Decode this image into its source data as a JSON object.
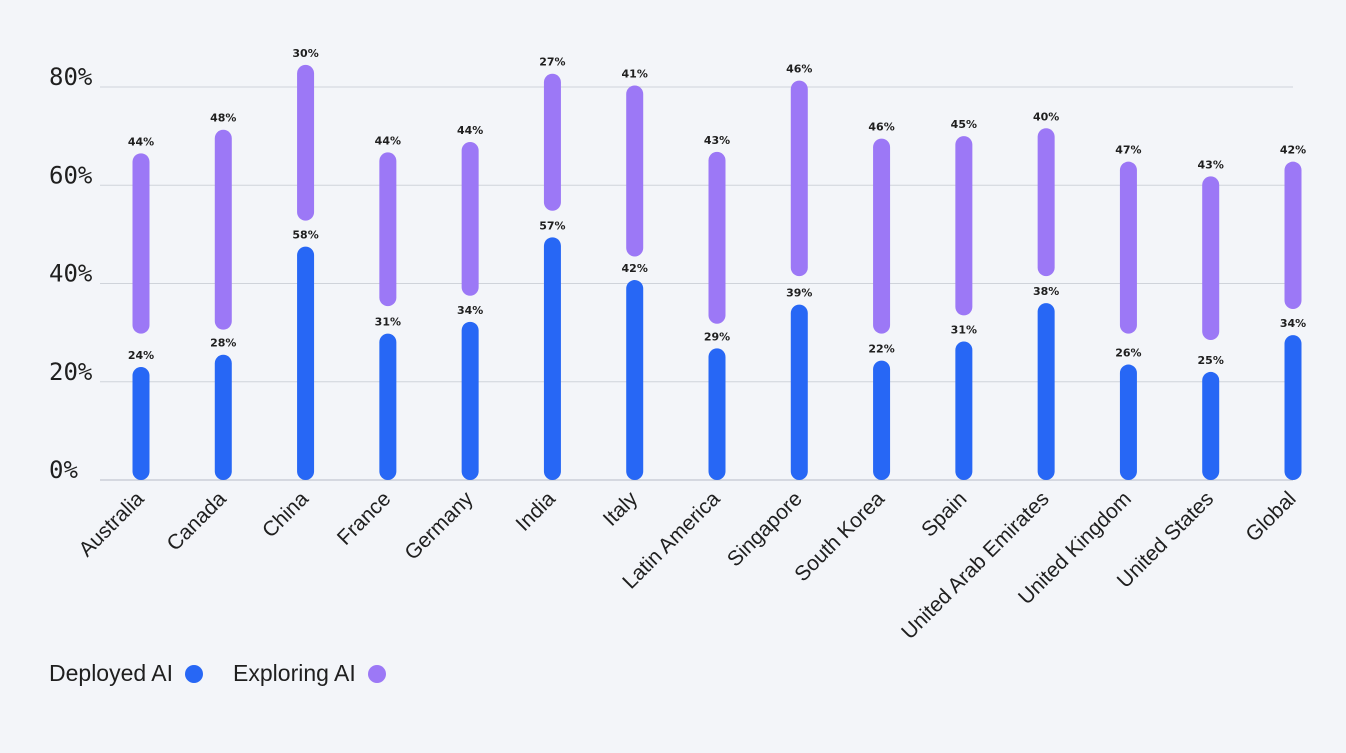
{
  "chart_data": {
    "type": "range-bar",
    "title": "",
    "xlabel": "",
    "ylabel": "",
    "ylim": [
      0,
      80
    ],
    "yticks": [
      "0%",
      "20%",
      "40%",
      "60%",
      "80%"
    ],
    "grid": true,
    "legend_position": "bottom-left",
    "categories": [
      "Australia",
      "Canada",
      "China",
      "France",
      "Germany",
      "India",
      "Italy",
      "Latin America",
      "Singapore",
      "South Korea",
      "Spain",
      "United Arab Emirates",
      "United Kingdom",
      "United States",
      "Global"
    ],
    "series": [
      {
        "name": "Deployed AI",
        "color": "#2767f5",
        "values": [
          24,
          28,
          58,
          31,
          34,
          57,
          42,
          29,
          39,
          22,
          31,
          38,
          26,
          25,
          34
        ],
        "labels": [
          "24%",
          "28%",
          "58%",
          "31%",
          "34%",
          "57%",
          "42%",
          "29%",
          "39%",
          "22%",
          "31%",
          "38%",
          "26%",
          "25%",
          "34%"
        ]
      },
      {
        "name": "Exploring AI",
        "color": "#9c78f6",
        "values": [
          44,
          48,
          30,
          44,
          44,
          27,
          41,
          43,
          46,
          46,
          45,
          40,
          47,
          43,
          42
        ],
        "labels": [
          "44%",
          "48%",
          "30%",
          "44%",
          "44%",
          "27%",
          "41%",
          "43%",
          "46%",
          "46%",
          "45%",
          "40%",
          "47%",
          "43%",
          "42%"
        ]
      }
    ],
    "visual_bars": {
      "deployed_top": [
        23,
        25.5,
        47.5,
        29.8,
        32.2,
        49.4,
        40.7,
        26.8,
        35.7,
        24.3,
        28.2,
        36,
        23.5,
        22,
        29.5
      ],
      "exploring_bottom": [
        29.8,
        30.6,
        52.8,
        35.4,
        37.5,
        54.8,
        45.5,
        31.8,
        41.5,
        29.8,
        33.5,
        41.5,
        29.8,
        28.5,
        34.8
      ],
      "exploring_top": [
        66.5,
        71.3,
        84.5,
        66.7,
        68.8,
        82.7,
        80.3,
        66.8,
        81.3,
        69.5,
        70,
        71.6,
        64.8,
        61.8,
        64.8
      ]
    }
  }
}
